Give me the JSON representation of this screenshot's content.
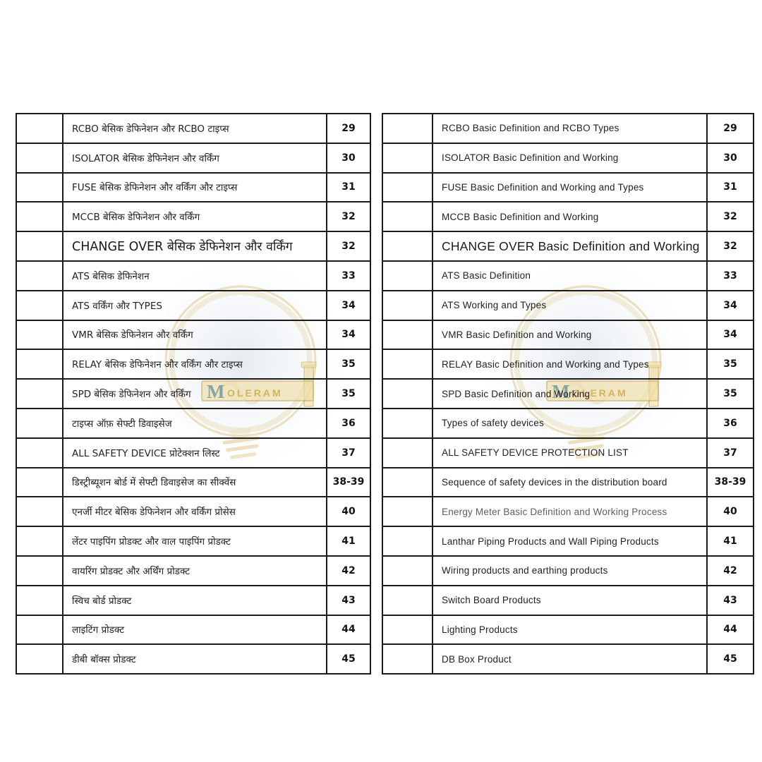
{
  "watermark": {
    "brand_initial": "M",
    "brand_rest": "OLERAM",
    "gold": "#cda43f",
    "ribbon_fill": "#efdda4",
    "teal_initial": "#5f8f9a"
  },
  "tables": [
    {
      "id": "hindi-toc",
      "rows": [
        {
          "title": "RCBO बेसिक डेफिनेशन और RCBO टाइप्स",
          "page": "29",
          "large": false,
          "muted": false
        },
        {
          "title": "ISOLATOR बेसिक डेफिनेशन और वर्किंग",
          "page": "30",
          "large": false,
          "muted": false
        },
        {
          "title": "FUSE बेसिक डेफिनेशन और वर्किंग और टाइप्स",
          "page": "31",
          "large": false,
          "muted": false
        },
        {
          "title": "MCCB बेसिक डेफिनेशन और वर्किंग",
          "page": "32",
          "large": false,
          "muted": false
        },
        {
          "title": "CHANGE OVER बेसिक डेफिनेशन और वर्किंग",
          "page": "32",
          "large": true,
          "muted": false
        },
        {
          "title": "ATS बेसिक डेफिनेशन",
          "page": "33",
          "large": false,
          "muted": false
        },
        {
          "title": "ATS वर्किंग और TYPES",
          "page": "34",
          "large": false,
          "muted": false
        },
        {
          "title": "VMR बेसिक डेफिनेशन और वर्किंग",
          "page": "34",
          "large": false,
          "muted": false
        },
        {
          "title": "RELAY बेसिक डेफिनेशन और वर्किंग और टाइप्स",
          "page": "35",
          "large": false,
          "muted": false
        },
        {
          "title": "SPD बेसिक डेफिनेशन और वर्किंग",
          "page": "35",
          "large": false,
          "muted": false
        },
        {
          "title": "टाइप्स ऑफ़ सेफ्टी डिवाइसेज",
          "page": "36",
          "large": false,
          "muted": false
        },
        {
          "title": "ALL SAFETY DEVICE प्रोटेक्शन लिस्ट",
          "page": "37",
          "large": false,
          "muted": false
        },
        {
          "title": "डिस्ट्रीब्यूशन बोर्ड में सेफ्टी डिवाइसेज का सीक्वेंस",
          "page": "38-39",
          "large": false,
          "muted": false
        },
        {
          "title": "एनर्जी मीटर बेसिक डेफिनेशन और वर्किंग प्रोसेस",
          "page": "40",
          "large": false,
          "muted": false
        },
        {
          "title": "लेंटर पाइपिंग प्रोडक्ट और वाल पाइपिंग प्रोडक्ट",
          "page": "41",
          "large": false,
          "muted": false
        },
        {
          "title": "वायरिंग प्रोडक्ट और अर्थिंग प्रोडक्ट",
          "page": "42",
          "large": false,
          "muted": false
        },
        {
          "title": "स्विच बोर्ड प्रोडक्ट",
          "page": "43",
          "large": false,
          "muted": false
        },
        {
          "title": "लाइटिंग प्रोडक्ट",
          "page": "44",
          "large": false,
          "muted": false
        },
        {
          "title": "डीबी बॉक्स प्रोडक्ट",
          "page": "45",
          "large": false,
          "muted": false
        }
      ]
    },
    {
      "id": "english-toc",
      "rows": [
        {
          "title": "RCBO Basic Definition and RCBO Types",
          "page": "29",
          "large": false,
          "muted": false
        },
        {
          "title": "ISOLATOR Basic Definition and Working",
          "page": "30",
          "large": false,
          "muted": false
        },
        {
          "title": "FUSE Basic Definition and Working and Types",
          "page": "31",
          "large": false,
          "muted": false
        },
        {
          "title": "MCCB Basic Definition and Working",
          "page": "32",
          "large": false,
          "muted": false
        },
        {
          "title": "CHANGE OVER Basic Definition and Working",
          "page": "32",
          "large": true,
          "muted": false
        },
        {
          "title": "ATS Basic Definition",
          "page": "33",
          "large": false,
          "muted": false
        },
        {
          "title": "ATS Working and Types",
          "page": "34",
          "large": false,
          "muted": false
        },
        {
          "title": "VMR Basic Definition and Working",
          "page": "34",
          "large": false,
          "muted": false
        },
        {
          "title": "RELAY Basic Definition and Working and Types",
          "page": "35",
          "large": false,
          "muted": false
        },
        {
          "title": "SPD Basic Definition and Working",
          "page": "35",
          "large": false,
          "muted": false
        },
        {
          "title": "Types of safety devices",
          "page": "36",
          "large": false,
          "muted": false
        },
        {
          "title": "ALL SAFETY DEVICE PROTECTION LIST",
          "page": "37",
          "large": false,
          "muted": false
        },
        {
          "title": "Sequence of safety devices in the distribution board",
          "page": "38-39",
          "large": false,
          "muted": false
        },
        {
          "title": "Energy Meter Basic Definition and Working Process",
          "page": "40",
          "large": false,
          "muted": true
        },
        {
          "title": "Lanthar Piping Products and Wall Piping Products",
          "page": "41",
          "large": false,
          "muted": false
        },
        {
          "title": "Wiring products and earthing products",
          "page": "42",
          "large": false,
          "muted": false
        },
        {
          "title": "Switch Board Products",
          "page": "43",
          "large": false,
          "muted": false
        },
        {
          "title": "Lighting Products",
          "page": "44",
          "large": false,
          "muted": false
        },
        {
          "title": "DB Box Product",
          "page": "45",
          "large": false,
          "muted": false
        }
      ]
    }
  ]
}
